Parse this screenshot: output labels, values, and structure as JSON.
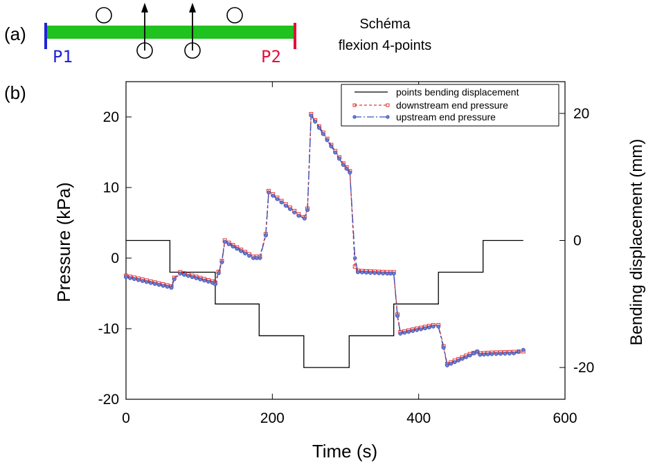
{
  "panel_a": {
    "label": "(a)",
    "title_line1": "Schéma",
    "title_line2": "flexion 4-points",
    "left_label": "P1",
    "right_label": "P2",
    "beam_color": "#1fc21f",
    "left_color": "#1f23d6",
    "right_color": "#e0103a"
  },
  "panel_b": {
    "label": "(b)"
  },
  "chart_data": {
    "type": "line",
    "xlabel": "Time (s)",
    "ylabel": "Pressure (kPa)",
    "y2label": "Bending displacement (mm)",
    "xlim": [
      0,
      600
    ],
    "ylim": [
      -20,
      25
    ],
    "y2lim": [
      -25,
      25
    ],
    "xticks": [
      "0",
      "200",
      "400",
      "600"
    ],
    "yticks": [
      "-20",
      "-10",
      "0",
      "10",
      "20"
    ],
    "y2ticks": [
      "-20",
      "0",
      "20"
    ],
    "grid": false,
    "legend_position": "top-right",
    "series": [
      {
        "name": "points bending displacement",
        "axis": "right",
        "color": "#000000",
        "style": "solid",
        "x": [
          0,
          60,
          60,
          122,
          122,
          182,
          182,
          243,
          243,
          305,
          305,
          366,
          366,
          427,
          427,
          488,
          488,
          543
        ],
        "y": [
          0,
          0,
          -5,
          -5,
          -10,
          -10,
          -15,
          -15,
          -20,
          -20,
          -15,
          -15,
          -10,
          -10,
          -5,
          -5,
          0,
          0
        ]
      },
      {
        "name": "downstream end pressure",
        "axis": "left",
        "color": "#e03030",
        "style": "dashed",
        "marker": "square",
        "x": [
          0,
          62,
          66,
          74,
          118,
          122,
          131,
          135,
          174,
          183,
          191,
          195,
          236,
          244,
          248,
          253,
          297,
          306,
          313,
          317,
          357,
          366,
          371,
          375,
          420,
          427,
          434,
          439,
          470,
          480,
          484,
          500,
          530,
          543
        ],
        "y": [
          -2.5,
          -4.0,
          -2.8,
          -2.0,
          -3.3,
          -3.5,
          -0.4,
          2.5,
          0.2,
          0.2,
          3.4,
          9.5,
          6.2,
          5.8,
          7.0,
          20.4,
          13.4,
          12.3,
          -1.2,
          -1.8,
          -2.0,
          -2.0,
          -8.0,
          -10.5,
          -9.5,
          -9.5,
          -12.5,
          -15.0,
          -13.6,
          -13.3,
          -13.5,
          -13.4,
          -13.3,
          -13.2
        ]
      },
      {
        "name": "upstream end pressure",
        "axis": "left",
        "color": "#3a50b8",
        "style": "dashdot",
        "marker": "circle",
        "x": [
          0,
          62,
          66,
          74,
          118,
          122,
          131,
          135,
          174,
          183,
          191,
          195,
          236,
          244,
          248,
          253,
          297,
          306,
          313,
          317,
          357,
          366,
          371,
          375,
          420,
          427,
          434,
          439,
          470,
          480,
          484,
          500,
          530,
          543
        ],
        "y": [
          -2.7,
          -4.2,
          -3.0,
          -2.2,
          -3.5,
          -3.7,
          -0.6,
          2.3,
          0.0,
          0.0,
          3.2,
          9.3,
          6.0,
          5.6,
          6.8,
          20.2,
          13.2,
          12.1,
          0.0,
          -2.0,
          -2.2,
          -2.2,
          -8.2,
          -10.7,
          -9.7,
          -9.7,
          -12.7,
          -15.2,
          -13.8,
          -13.2,
          -13.7,
          -13.6,
          -13.5,
          -13.0
        ]
      }
    ]
  }
}
